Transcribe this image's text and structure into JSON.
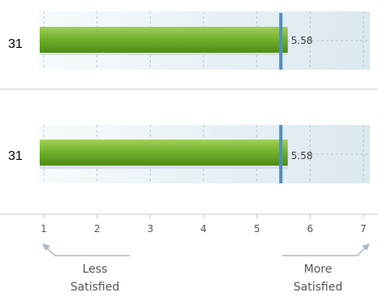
{
  "chart_data": [
    {
      "type": "bar",
      "orientation": "horizontal",
      "category_label": "31",
      "value": 5.58,
      "value_label": "5.58",
      "reference_value": 5.45,
      "xlim": [
        1,
        7
      ]
    },
    {
      "type": "bar",
      "orientation": "horizontal",
      "category_label": "31",
      "value": 5.58,
      "value_label": "5.58",
      "reference_value": 5.45,
      "xlim": [
        1,
        7
      ]
    }
  ],
  "axis": {
    "ticks": [
      "1",
      "2",
      "3",
      "4",
      "5",
      "6",
      "7"
    ],
    "tick_values": [
      1,
      2,
      3,
      4,
      5,
      6,
      7
    ],
    "left_label_line1": "Less",
    "left_label_line2": "Satisfied",
    "right_label_line1": "More",
    "right_label_line2": "Satisfied"
  },
  "colors": {
    "bar_green": "#7cb532",
    "bar_green_dark": "#4f8a16",
    "reference_line": "#4a90c8",
    "grid": "#b8c4cc",
    "divider": "#c8c8c8",
    "text": "#222222",
    "axis_text": "#555555",
    "arrow": "#aab8c4"
  }
}
